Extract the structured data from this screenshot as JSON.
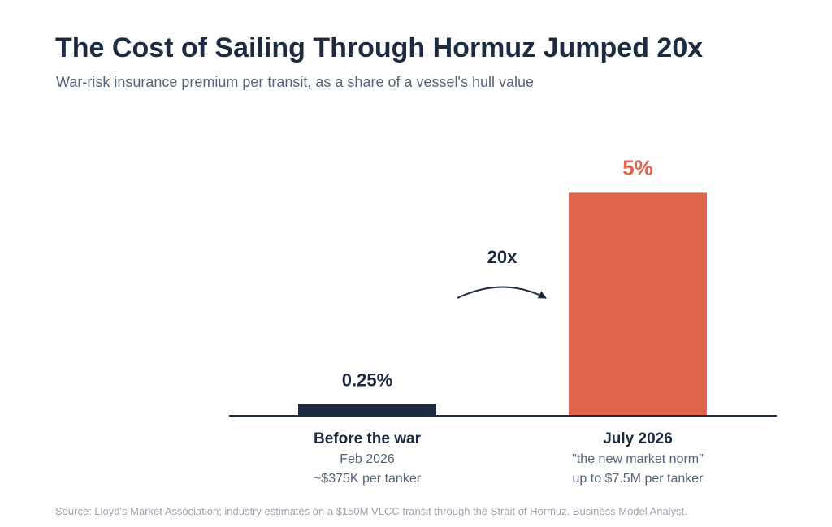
{
  "title": "The Cost of Sailing Through Hormuz Jumped 20x",
  "subtitle": "War-risk insurance premium per transit, as a share of a vessel's hull value",
  "chart_data": {
    "type": "bar",
    "categories": [
      "Before the war",
      "July 2026"
    ],
    "values": [
      0.25,
      5
    ],
    "value_labels": [
      "0.25%",
      "5%"
    ],
    "category_details": [
      [
        "Feb 2026",
        "~$375K per tanker"
      ],
      [
        "\"the new market norm\"",
        "up to $7.5M per tanker"
      ]
    ],
    "annotation": "20x",
    "unit": "%",
    "ylim": [
      0,
      5.5
    ],
    "grid": false,
    "legend": "none",
    "colors": [
      "#1c2b40",
      "#e0644a"
    ],
    "baseline_color": "#1c2b40"
  },
  "source": "Source: Lloyd's Market Association; industry estimates on a $150M VLCC transit through the Strait of Hormuz. Business Model Analyst."
}
